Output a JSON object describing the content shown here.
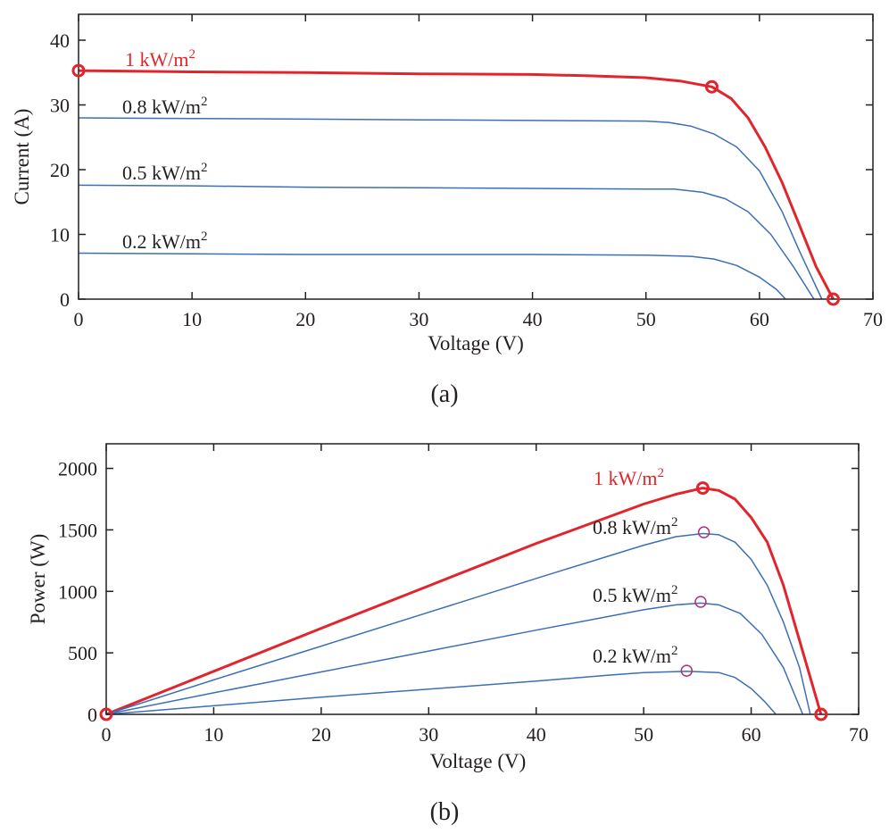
{
  "colors": {
    "highlight": "#e0262c",
    "series": "#3b6fb6",
    "mpp_marker": "#b0307a",
    "axis": "#231f20"
  },
  "chart_data": [
    {
      "type": "line",
      "panel": "a",
      "caption": "(a)",
      "xlabel": "Voltage (V)",
      "ylabel": "Current (A)",
      "xlim": [
        0,
        70
      ],
      "ylim": [
        0,
        44
      ],
      "xticks": [
        "0",
        "10",
        "20",
        "30",
        "40",
        "50",
        "60",
        "70"
      ],
      "yticks": [
        "0",
        "10",
        "20",
        "30",
        "40"
      ],
      "grid": false,
      "series": [
        {
          "name": "1 kW/m2",
          "label": "1 kW/m",
          "label_sup": "2",
          "style": "highlight",
          "x": [
            0,
            10,
            20,
            30,
            40,
            45,
            50,
            53,
            55.8,
            57.5,
            59,
            60.5,
            62,
            63.5,
            65,
            66.5
          ],
          "y": [
            35.3,
            35.1,
            35.0,
            34.8,
            34.7,
            34.5,
            34.2,
            33.7,
            32.8,
            31.0,
            28.0,
            23.5,
            18.0,
            11.5,
            5.0,
            0
          ],
          "markers": [
            {
              "x": 0,
              "y": 35.3
            },
            {
              "x": 55.8,
              "y": 32.8
            },
            {
              "x": 66.5,
              "y": 0
            }
          ]
        },
        {
          "name": "0.8 kW/m2",
          "label": "0.8 kW/m",
          "label_sup": "2",
          "style": "normal",
          "x": [
            0,
            10,
            20,
            30,
            40,
            50,
            52,
            54,
            56,
            58,
            60,
            62,
            63.5,
            65.5
          ],
          "y": [
            28.0,
            27.9,
            27.8,
            27.7,
            27.6,
            27.5,
            27.3,
            26.7,
            25.5,
            23.5,
            19.8,
            13.5,
            7.5,
            0
          ]
        },
        {
          "name": "0.5 kW/m2",
          "label": "0.5 kW/m",
          "label_sup": "2",
          "style": "normal",
          "x": [
            0,
            10,
            20,
            30,
            40,
            50,
            52.5,
            55,
            57,
            59,
            61,
            63,
            64.8
          ],
          "y": [
            17.6,
            17.5,
            17.3,
            17.2,
            17.1,
            17.0,
            17.0,
            16.5,
            15.5,
            13.5,
            10.0,
            5.0,
            0
          ]
        },
        {
          "name": "0.2 kW/m2",
          "label": "0.2 kW/m",
          "label_sup": "2",
          "style": "normal",
          "x": [
            0,
            10,
            20,
            30,
            40,
            50,
            54,
            56,
            58,
            60,
            61.5,
            62.3
          ],
          "y": [
            7.1,
            7.0,
            6.9,
            6.9,
            6.9,
            6.8,
            6.6,
            6.2,
            5.2,
            3.4,
            1.5,
            0
          ]
        }
      ]
    },
    {
      "type": "line",
      "panel": "b",
      "caption": "(b)",
      "xlabel": "Voltage (V)",
      "ylabel": "Power (W)",
      "xlim": [
        0,
        70
      ],
      "ylim": [
        0,
        2200
      ],
      "xticks": [
        "0",
        "10",
        "20",
        "30",
        "40",
        "50",
        "60",
        "70"
      ],
      "yticks": [
        "0",
        "500",
        "1000",
        "1500",
        "2000"
      ],
      "grid": false,
      "series": [
        {
          "name": "1 kW/m2",
          "label": "1 kW/m",
          "label_sup": "2",
          "style": "highlight",
          "x": [
            0,
            10,
            20,
            30,
            40,
            50,
            53,
            55.5,
            57,
            58.5,
            60,
            61.5,
            63,
            64.5,
            66.5
          ],
          "y": [
            0,
            350,
            700,
            1045,
            1390,
            1710,
            1790,
            1840,
            1820,
            1750,
            1600,
            1400,
            1050,
            600,
            0
          ],
          "markers": [
            {
              "x": 0,
              "y": 0
            },
            {
              "x": 55.5,
              "y": 1840
            },
            {
              "x": 66.5,
              "y": 0
            }
          ]
        },
        {
          "name": "0.8 kW/m2",
          "label": "0.8 kW/m",
          "label_sup": "2",
          "style": "normal",
          "x": [
            0,
            10,
            20,
            30,
            40,
            50,
            53,
            55.5,
            57,
            58.5,
            60,
            61.5,
            63,
            64.5,
            65.5
          ],
          "y": [
            0,
            280,
            555,
            830,
            1105,
            1375,
            1445,
            1470,
            1460,
            1400,
            1260,
            1050,
            750,
            380,
            0
          ],
          "mpp": {
            "x": 55.6,
            "y": 1480
          }
        },
        {
          "name": "0.5 kW/m2",
          "label": "0.5 kW/m",
          "label_sup": "2",
          "style": "normal",
          "x": [
            0,
            10,
            20,
            30,
            40,
            50,
            53,
            55.3,
            57,
            59,
            61,
            63,
            64.8
          ],
          "y": [
            0,
            175,
            345,
            515,
            685,
            850,
            890,
            905,
            890,
            820,
            650,
            380,
            0
          ],
          "mpp": {
            "x": 55.3,
            "y": 915
          }
        },
        {
          "name": "0.2 kW/m2",
          "label": "0.2 kW/m",
          "label_sup": "2",
          "style": "normal",
          "x": [
            0,
            10,
            20,
            30,
            40,
            47,
            50,
            54,
            57,
            58.5,
            60,
            61.3,
            62.3
          ],
          "y": [
            0,
            70,
            140,
            205,
            270,
            320,
            340,
            350,
            340,
            300,
            210,
            100,
            0
          ],
          "mpp": {
            "x": 54,
            "y": 355
          }
        }
      ]
    }
  ]
}
